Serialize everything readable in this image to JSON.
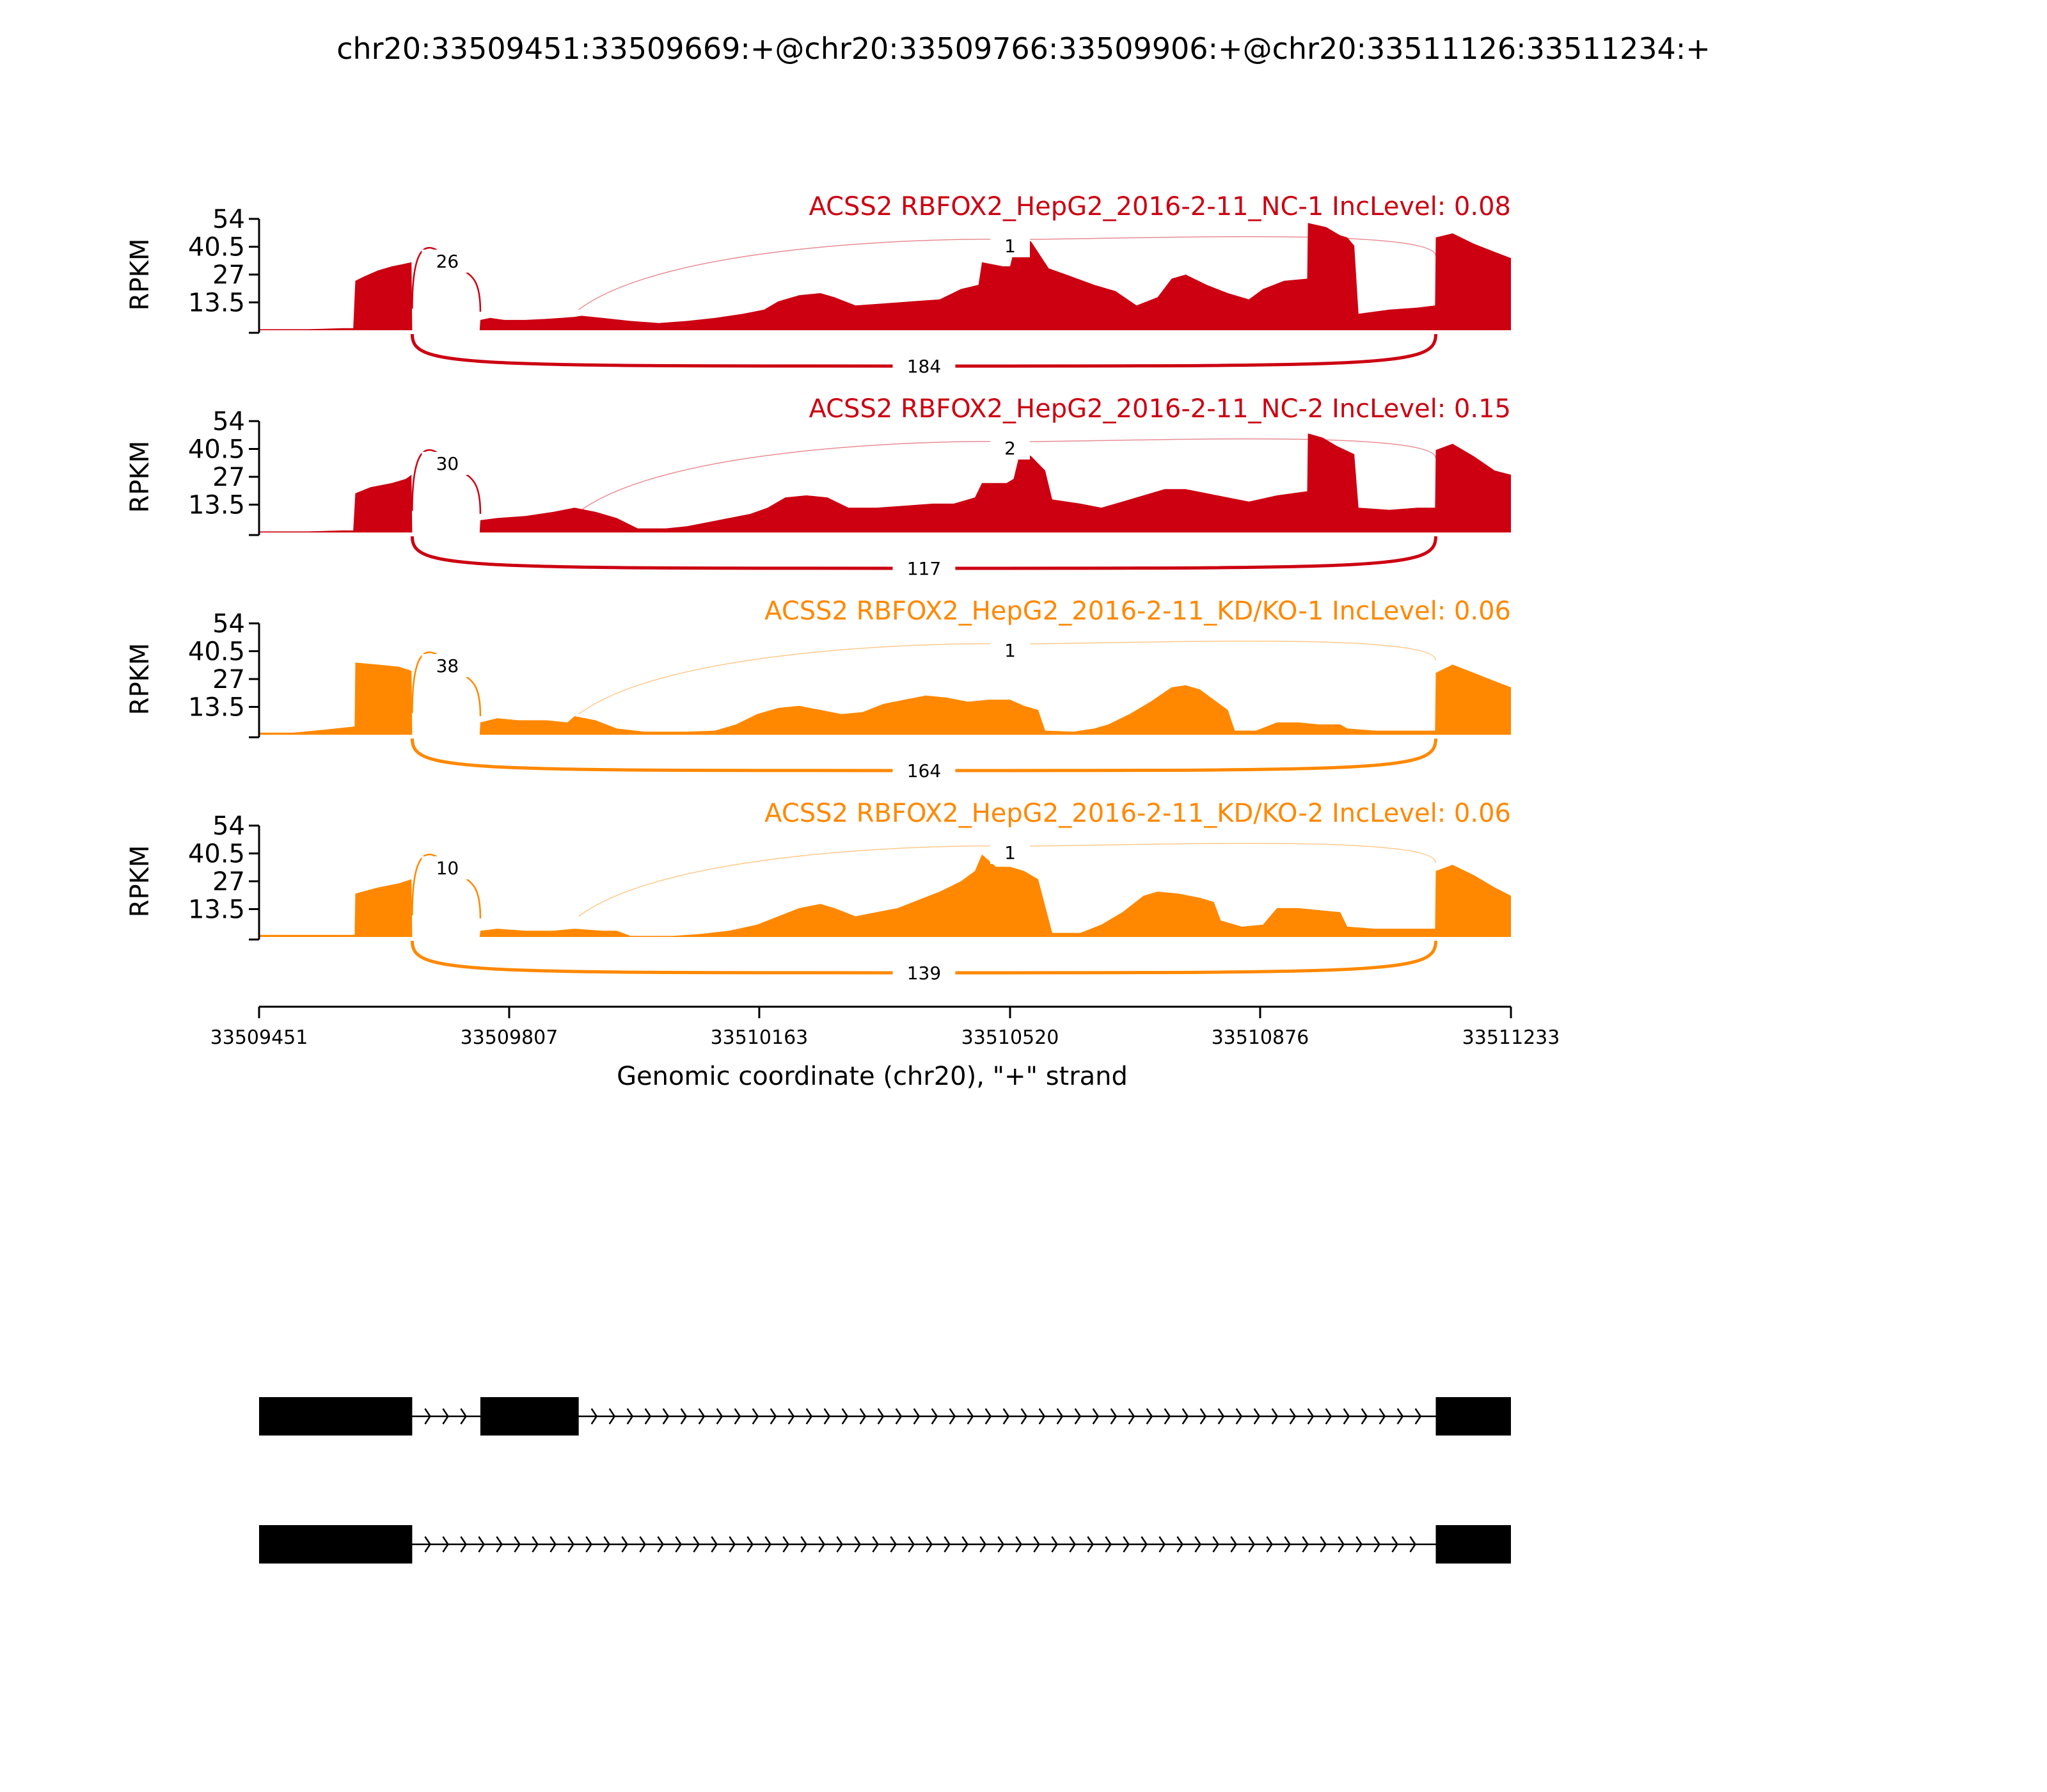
{
  "title": "chr20:33509451:33509669:+@chr20:33509766:33509906:+@chr20:33511126:33511234:+",
  "chart_data": {
    "type": "area",
    "subtype": "sashimi",
    "ylabel": "RPKM",
    "yticks": [
      "54",
      "40.5",
      "27",
      "13.5"
    ],
    "ylim": [
      0,
      54
    ],
    "xlabel": "Genomic coordinate (chr20), \"+\" strand",
    "xlim": [
      33509451,
      33511233
    ],
    "xticks": [
      33509451,
      33509807,
      33510163,
      33510520,
      33510876,
      33511233
    ],
    "xtick_labels": [
      "33509451",
      "33509807",
      "33510163",
      "33510520",
      "33510876",
      "33511233"
    ],
    "series": [
      {
        "name": "ACSS2 RBFOX2_HepG2_2016-2-11_NC-1 IncLevel: 0.08",
        "color": "#cc0011",
        "coverage": [
          [
            33509451,
            0.5
          ],
          [
            33509520,
            0.5
          ],
          [
            33509570,
            1
          ],
          [
            33509585,
            1
          ],
          [
            33509588,
            24
          ],
          [
            33509600,
            26
          ],
          [
            33509620,
            29
          ],
          [
            33509640,
            31
          ],
          [
            33509655,
            32
          ],
          [
            33509668,
            33
          ],
          [
            33509669,
            0
          ],
          [
            33509765,
            0
          ],
          [
            33509766,
            5
          ],
          [
            33509780,
            6
          ],
          [
            33509800,
            5
          ],
          [
            33509830,
            5
          ],
          [
            33509860,
            5.5
          ],
          [
            33509880,
            6
          ],
          [
            33509900,
            6.5
          ],
          [
            33509910,
            7
          ],
          [
            33509940,
            6
          ],
          [
            33509980,
            4.5
          ],
          [
            33510020,
            3.5
          ],
          [
            33510060,
            4.5
          ],
          [
            33510100,
            6
          ],
          [
            33510140,
            8
          ],
          [
            33510170,
            10
          ],
          [
            33510190,
            14
          ],
          [
            33510220,
            17
          ],
          [
            33510250,
            18
          ],
          [
            33510270,
            16
          ],
          [
            33510300,
            12
          ],
          [
            33510340,
            13
          ],
          [
            33510380,
            14
          ],
          [
            33510420,
            15
          ],
          [
            33510450,
            20
          ],
          [
            33510475,
            22
          ],
          [
            33510480,
            33
          ],
          [
            33510510,
            31
          ],
          [
            33510520,
            31
          ],
          [
            33510530,
            45
          ],
          [
            33510550,
            43
          ],
          [
            33510575,
            30
          ],
          [
            33510600,
            27
          ],
          [
            33510640,
            22
          ],
          [
            33510670,
            19
          ],
          [
            33510700,
            12
          ],
          [
            33510730,
            16
          ],
          [
            33510750,
            25
          ],
          [
            33510770,
            27
          ],
          [
            33510800,
            22
          ],
          [
            33510830,
            18
          ],
          [
            33510860,
            15
          ],
          [
            33510880,
            20
          ],
          [
            33510910,
            24
          ],
          [
            33510943,
            25
          ],
          [
            33510944,
            52
          ],
          [
            33510970,
            50
          ],
          [
            33510990,
            46
          ],
          [
            33511000,
            45
          ],
          [
            33511010,
            41
          ],
          [
            33511016,
            8
          ],
          [
            33511060,
            10
          ],
          [
            33511100,
            11
          ],
          [
            33511125,
            12
          ],
          [
            33511126,
            45
          ],
          [
            33511150,
            47
          ],
          [
            33511180,
            42
          ],
          [
            33511210,
            38
          ],
          [
            33511233,
            35
          ]
        ],
        "junctions": [
          {
            "start": 33509669,
            "end": 33509766,
            "count": "26",
            "side": "above"
          },
          {
            "start": 33509906,
            "end": 33511126,
            "count": "1",
            "side": "above"
          },
          {
            "start": 33509669,
            "end": 33511126,
            "count": "184",
            "side": "below"
          }
        ]
      },
      {
        "name": "ACSS2 RBFOX2_HepG2_2016-2-11_NC-2 IncLevel: 0.15",
        "color": "#cc0011",
        "coverage": [
          [
            33509451,
            0.5
          ],
          [
            33509520,
            0.5
          ],
          [
            33509570,
            1
          ],
          [
            33509585,
            1
          ],
          [
            33509588,
            19
          ],
          [
            33509610,
            22
          ],
          [
            33509640,
            24
          ],
          [
            33509660,
            26
          ],
          [
            33509668,
            28
          ],
          [
            33509669,
            0
          ],
          [
            33509765,
            0
          ],
          [
            33509766,
            6
          ],
          [
            33509790,
            7
          ],
          [
            33509830,
            8
          ],
          [
            33509870,
            10
          ],
          [
            33509900,
            12
          ],
          [
            33509930,
            10
          ],
          [
            33509960,
            7
          ],
          [
            33509990,
            2
          ],
          [
            33510030,
            2
          ],
          [
            33510060,
            3
          ],
          [
            33510090,
            5
          ],
          [
            33510120,
            7
          ],
          [
            33510150,
            9
          ],
          [
            33510175,
            12
          ],
          [
            33510200,
            17
          ],
          [
            33510230,
            18
          ],
          [
            33510260,
            17
          ],
          [
            33510290,
            12
          ],
          [
            33510330,
            12
          ],
          [
            33510370,
            13
          ],
          [
            33510410,
            14
          ],
          [
            33510440,
            14
          ],
          [
            33510470,
            17
          ],
          [
            33510480,
            24
          ],
          [
            33510515,
            24
          ],
          [
            33510525,
            26
          ],
          [
            33510535,
            40
          ],
          [
            33510550,
            37
          ],
          [
            33510570,
            30
          ],
          [
            33510580,
            16
          ],
          [
            33510620,
            14
          ],
          [
            33510650,
            12
          ],
          [
            33510680,
            15
          ],
          [
            33510710,
            18
          ],
          [
            33510740,
            21
          ],
          [
            33510770,
            21
          ],
          [
            33510800,
            19
          ],
          [
            33510830,
            17
          ],
          [
            33510860,
            15
          ],
          [
            33510900,
            18
          ],
          [
            33510943,
            20
          ],
          [
            33510944,
            48
          ],
          [
            33510965,
            46
          ],
          [
            33510985,
            42
          ],
          [
            33511010,
            38
          ],
          [
            33511016,
            12
          ],
          [
            33511060,
            11
          ],
          [
            33511100,
            12
          ],
          [
            33511125,
            12
          ],
          [
            33511126,
            40
          ],
          [
            33511150,
            43
          ],
          [
            33511180,
            37
          ],
          [
            33511210,
            30
          ],
          [
            33511233,
            28
          ]
        ],
        "junctions": [
          {
            "start": 33509669,
            "end": 33509766,
            "count": "30",
            "side": "above"
          },
          {
            "start": 33509906,
            "end": 33511126,
            "count": "2",
            "side": "above"
          },
          {
            "start": 33509669,
            "end": 33511126,
            "count": "117",
            "side": "below"
          }
        ]
      },
      {
        "name": "ACSS2 RBFOX2_HepG2_2016-2-11_KD/KO-1 IncLevel: 0.06",
        "color": "#ff8800",
        "coverage": [
          [
            33509451,
            1
          ],
          [
            33509500,
            1
          ],
          [
            33509530,
            2
          ],
          [
            33509560,
            3
          ],
          [
            33509587,
            4
          ],
          [
            33509588,
            35
          ],
          [
            33509620,
            34
          ],
          [
            33509650,
            33
          ],
          [
            33509668,
            31
          ],
          [
            33509669,
            0
          ],
          [
            33509765,
            0
          ],
          [
            33509766,
            6
          ],
          [
            33509790,
            8
          ],
          [
            33509820,
            7
          ],
          [
            33509860,
            7
          ],
          [
            33509890,
            6
          ],
          [
            33509900,
            9
          ],
          [
            33509930,
            7
          ],
          [
            33509960,
            3
          ],
          [
            33510000,
            1.5
          ],
          [
            33510060,
            1.5
          ],
          [
            33510100,
            2
          ],
          [
            33510130,
            5
          ],
          [
            33510160,
            10
          ],
          [
            33510190,
            13
          ],
          [
            33510220,
            14
          ],
          [
            33510250,
            12
          ],
          [
            33510280,
            10
          ],
          [
            33510310,
            11
          ],
          [
            33510340,
            15
          ],
          [
            33510370,
            17
          ],
          [
            33510400,
            19
          ],
          [
            33510430,
            18
          ],
          [
            33510460,
            16
          ],
          [
            33510490,
            17
          ],
          [
            33510520,
            17
          ],
          [
            33510540,
            14
          ],
          [
            33510560,
            12
          ],
          [
            33510570,
            2
          ],
          [
            33510610,
            1.5
          ],
          [
            33510640,
            3
          ],
          [
            33510660,
            5
          ],
          [
            33510690,
            10
          ],
          [
            33510720,
            16
          ],
          [
            33510750,
            23
          ],
          [
            33510770,
            24
          ],
          [
            33510790,
            22
          ],
          [
            33510810,
            17
          ],
          [
            33510830,
            12
          ],
          [
            33510840,
            2
          ],
          [
            33510870,
            2
          ],
          [
            33510900,
            6
          ],
          [
            33510930,
            6
          ],
          [
            33510960,
            5
          ],
          [
            33510990,
            5
          ],
          [
            33511000,
            3
          ],
          [
            33511040,
            2
          ],
          [
            33511080,
            2
          ],
          [
            33511125,
            2
          ],
          [
            33511126,
            30
          ],
          [
            33511150,
            34
          ],
          [
            33511180,
            30
          ],
          [
            33511210,
            26
          ],
          [
            33511233,
            23
          ]
        ],
        "junctions": [
          {
            "start": 33509669,
            "end": 33509766,
            "count": "38",
            "side": "above"
          },
          {
            "start": 33509906,
            "end": 33511126,
            "count": "1",
            "side": "above"
          },
          {
            "start": 33509669,
            "end": 33511126,
            "count": "164",
            "side": "below"
          }
        ]
      },
      {
        "name": "ACSS2 RBFOX2_HepG2_2016-2-11_KD/KO-2 IncLevel: 0.06",
        "color": "#ff8800",
        "coverage": [
          [
            33509451,
            1
          ],
          [
            33509520,
            1
          ],
          [
            33509560,
            1
          ],
          [
            33509587,
            1
          ],
          [
            33509588,
            21
          ],
          [
            33509620,
            24
          ],
          [
            33509650,
            26
          ],
          [
            33509668,
            28
          ],
          [
            33509669,
            0
          ],
          [
            33509765,
            0
          ],
          [
            33509766,
            3
          ],
          [
            33509790,
            4
          ],
          [
            33509830,
            3
          ],
          [
            33509870,
            3
          ],
          [
            33509900,
            4
          ],
          [
            33509940,
            3
          ],
          [
            33509960,
            3
          ],
          [
            33509980,
            0.5
          ],
          [
            33510040,
            0.5
          ],
          [
            33510080,
            1.5
          ],
          [
            33510120,
            3
          ],
          [
            33510160,
            6
          ],
          [
            33510190,
            10
          ],
          [
            33510220,
            14
          ],
          [
            33510250,
            16
          ],
          [
            33510270,
            14
          ],
          [
            33510300,
            10
          ],
          [
            33510330,
            12
          ],
          [
            33510360,
            14
          ],
          [
            33510390,
            18
          ],
          [
            33510420,
            22
          ],
          [
            33510450,
            27
          ],
          [
            33510470,
            32
          ],
          [
            33510480,
            40
          ],
          [
            33510500,
            34
          ],
          [
            33510520,
            34
          ],
          [
            33510540,
            32
          ],
          [
            33510560,
            28
          ],
          [
            33510580,
            2
          ],
          [
            33510620,
            2
          ],
          [
            33510650,
            6
          ],
          [
            33510680,
            12
          ],
          [
            33510710,
            20
          ],
          [
            33510730,
            22
          ],
          [
            33510760,
            21
          ],
          [
            33510790,
            19
          ],
          [
            33510810,
            17
          ],
          [
            33510820,
            8
          ],
          [
            33510850,
            5
          ],
          [
            33510880,
            6
          ],
          [
            33510900,
            14
          ],
          [
            33510930,
            14
          ],
          [
            33510960,
            13
          ],
          [
            33510990,
            12
          ],
          [
            33511000,
            5
          ],
          [
            33511040,
            4
          ],
          [
            33511080,
            4
          ],
          [
            33511125,
            4
          ],
          [
            33511126,
            32
          ],
          [
            33511150,
            35
          ],
          [
            33511180,
            30
          ],
          [
            33511210,
            24
          ],
          [
            33511233,
            20
          ]
        ],
        "junctions": [
          {
            "start": 33509669,
            "end": 33509766,
            "count": "10",
            "side": "above"
          },
          {
            "start": 33509906,
            "end": 33511126,
            "count": "1",
            "side": "above"
          },
          {
            "start": 33509669,
            "end": 33511126,
            "count": "139",
            "side": "below"
          }
        ]
      }
    ],
    "isoforms": [
      {
        "exons": [
          [
            33509451,
            33509669
          ],
          [
            33509766,
            33509906
          ],
          [
            33511126,
            33511233
          ]
        ]
      },
      {
        "exons": [
          [
            33509451,
            33509669
          ],
          [
            33511126,
            33511233
          ]
        ]
      }
    ]
  }
}
